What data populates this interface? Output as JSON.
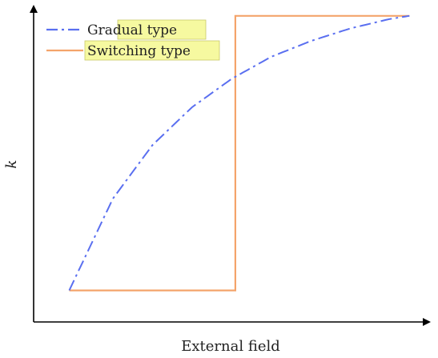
{
  "chart_data": {
    "type": "line",
    "title": "",
    "xlabel": "External field",
    "ylabel": "k",
    "xlim": [
      0,
      1
    ],
    "ylim": [
      0,
      1
    ],
    "ticks_shown": false,
    "grid": false,
    "legend_position": "top-left",
    "series": [
      {
        "name": "Gradual type",
        "style": "dash-dot",
        "color": "#5a6ff0",
        "x": [
          0.09,
          0.2,
          0.3,
          0.4,
          0.5,
          0.6,
          0.7,
          0.8,
          0.9,
          0.95
        ],
        "y": [
          0.1,
          0.39,
          0.56,
          0.68,
          0.77,
          0.84,
          0.89,
          0.93,
          0.96,
          0.97
        ]
      },
      {
        "name": "Switching type",
        "style": "solid",
        "color": "#f4a46b",
        "x": [
          0.09,
          0.51,
          0.51,
          0.95
        ],
        "y": [
          0.1,
          0.1,
          0.97,
          0.97
        ]
      }
    ],
    "annotations": [
      {
        "type": "vertical-dashed-line",
        "x": 0.51,
        "y_from": 0.1,
        "y_to": 0.97,
        "color": "#000000"
      }
    ],
    "legend_highlight_color": "#f6f9a0"
  }
}
